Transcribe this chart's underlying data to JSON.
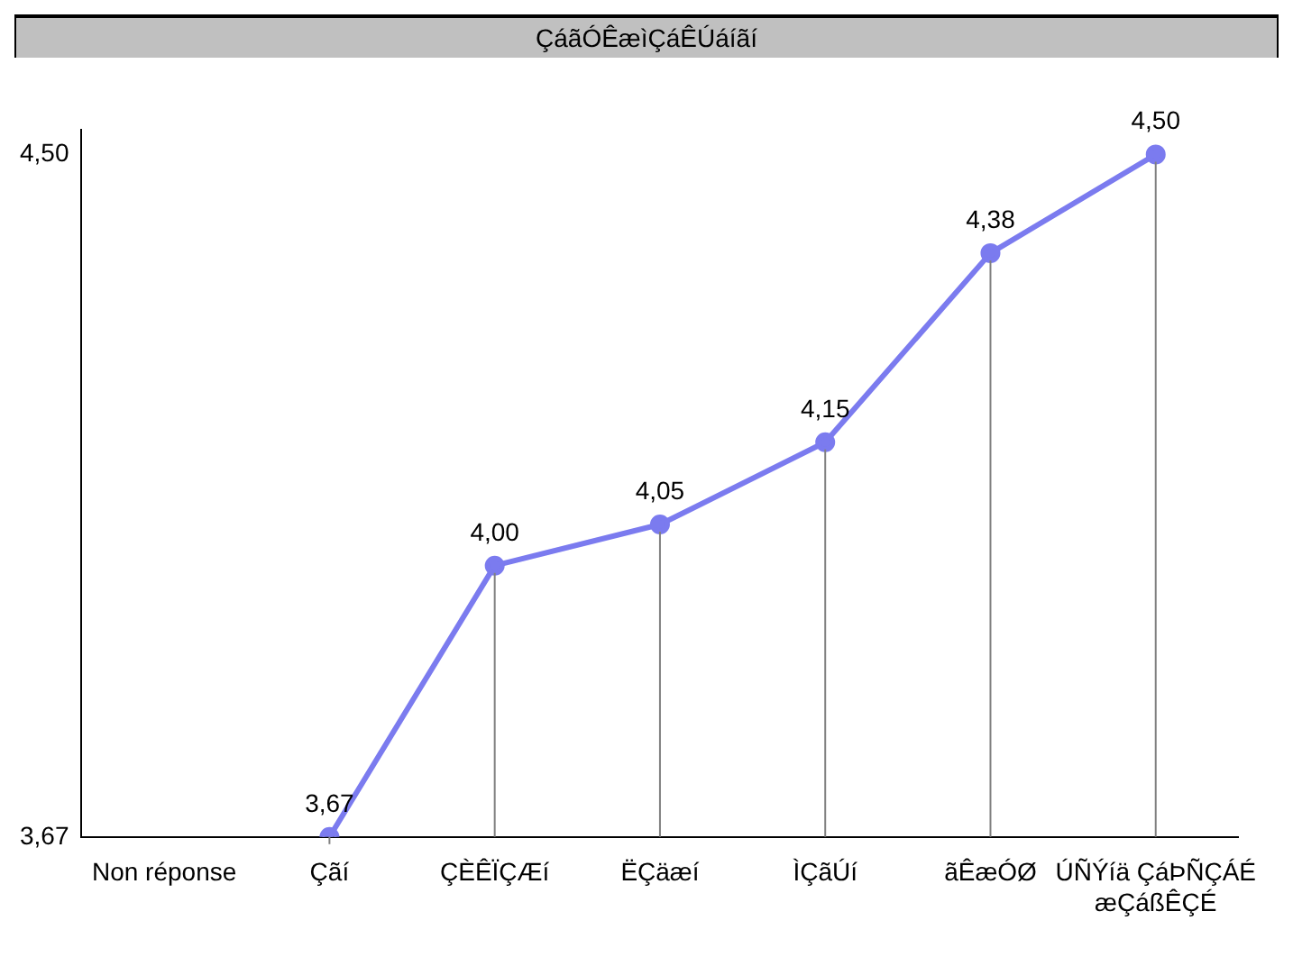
{
  "chart_data": {
    "type": "line",
    "title": "ÇáãÓÊæìÇáÊÚáíãí",
    "categories": [
      "Non réponse",
      "Çãí",
      "ÇÈÊÏÇÆí",
      "ËÇäæí",
      "ÌÇãÚí",
      "ãÊæÓØ",
      "ÚÑÝíä ÇáÞÑÇÁÉ æÇáßÊÇÉ"
    ],
    "values": [
      null,
      3.67,
      4.0,
      4.05,
      4.15,
      4.38,
      4.5
    ],
    "value_labels": [
      null,
      "3,67",
      "4,00",
      "4,05",
      "4,15",
      "4,38",
      "4,50"
    ],
    "color": "#7b7bef",
    "marker": "circle",
    "line_style": "solid",
    "grid": "x",
    "legend": false,
    "ylim": [
      3.67,
      4.53
    ],
    "yticks": [
      {
        "value": 3.67,
        "label": "3,67"
      },
      {
        "value": 4.5,
        "label": "4,50"
      }
    ]
  }
}
